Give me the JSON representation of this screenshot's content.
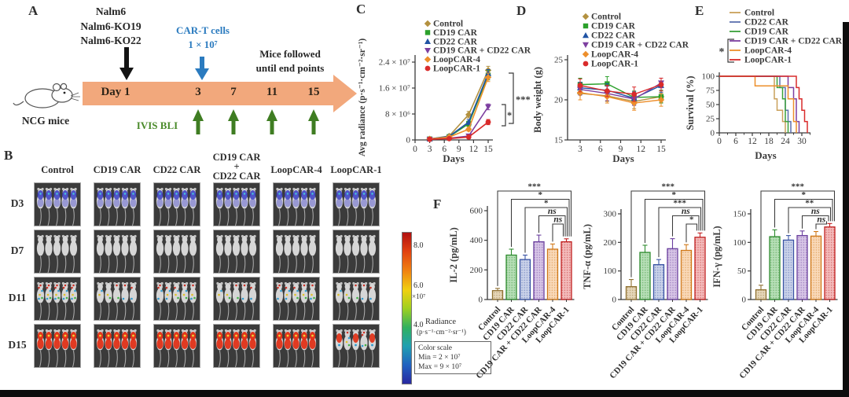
{
  "figure": {
    "panel_labels": {
      "a": "A",
      "b": "B",
      "c": "C",
      "d": "D",
      "e": "E",
      "f": "F"
    }
  },
  "panel_a": {
    "cell_lines": [
      "Nalm6",
      "Nalm6-KO19",
      "Nalm6-KO22"
    ],
    "cart_label": "CAR-T cells",
    "cart_dose": "1 × 10⁷",
    "followed_line1": "Mice followed",
    "followed_line2": "until end points",
    "timeline": [
      "Day 1",
      "3",
      "7",
      "11",
      "15"
    ],
    "mouse_label": "NCG mice",
    "ivis_label": "IVIS BLI",
    "accent_orange": "#f2a87c",
    "accent_blue": "#2b7bbf",
    "accent_green": "#3f7d22"
  },
  "panel_b": {
    "row_labels": [
      "D3",
      "D7",
      "D11",
      "D15"
    ],
    "column_headers": [
      [
        "Control"
      ],
      [
        "CD19 CAR"
      ],
      [
        "CD22 CAR"
      ],
      [
        "CD19 CAR",
        "+",
        "CD22 CAR"
      ],
      [
        "LoopCAR-4"
      ],
      [
        "LoopCAR-1"
      ]
    ],
    "signals": [
      [
        "blue",
        "blue",
        "blue",
        "blue",
        "blue",
        "blue"
      ],
      [
        "none",
        "none",
        "none",
        "none",
        "none",
        "none"
      ],
      [
        "speckle-hi",
        "speckle-lo",
        "speckle-md",
        "speckle-lo",
        "speckle-md",
        "speckle-lo"
      ],
      [
        "red",
        "red",
        "red",
        "red",
        "red",
        "red-mixed"
      ]
    ],
    "colorbar": {
      "tick_top": "8.0",
      "tick_mid": "6.0",
      "multiplier": "×10⁷",
      "tick_bot": "4.0",
      "radiance_label": "Radiance",
      "radiance_units": "(p·s⁻¹·cm⁻²·sr⁻¹)",
      "scale_title": "Color scale",
      "scale_min": "Min = 2 × 10⁷",
      "scale_max": "Max = 9 × 10⁷"
    }
  },
  "chart_data": [
    {
      "id": "c_radiance",
      "panel": "C",
      "type": "line",
      "ylabel": "Avg radiance (p·s⁻¹·cm⁻²·sr⁻¹)",
      "xlabel": "Days",
      "x_ticks": [
        0,
        3,
        6,
        9,
        12,
        15
      ],
      "y_ticks": [
        {
          "v": 0,
          "label": "0"
        },
        {
          "v": 8,
          "label": "8 × 10⁶"
        },
        {
          "v": 16,
          "label": "1.6 × 10⁷"
        },
        {
          "v": 24,
          "label": "2.4 × 10⁷"
        }
      ],
      "y_unit": "×10⁶",
      "ylim": [
        0,
        24
      ],
      "xlim": [
        0,
        15.8
      ],
      "x": [
        3,
        7,
        11,
        15
      ],
      "series": [
        {
          "name": "Control",
          "color": "#b3913f",
          "marker": "diamond",
          "values": [
            0.3,
            1.2,
            7.8,
            21.5
          ],
          "err": [
            0.15,
            0.3,
            1.0,
            1.2
          ]
        },
        {
          "name": "CD19 CAR",
          "color": "#2ba02b",
          "marker": "square",
          "values": [
            0.3,
            1.0,
            5.0,
            20.0
          ],
          "err": [
            0.15,
            0.25,
            0.8,
            1.5
          ]
        },
        {
          "name": "CD22 CAR",
          "color": "#2053a4",
          "marker": "triangle",
          "values": [
            0.3,
            1.1,
            5.5,
            20.5
          ],
          "err": [
            0.15,
            0.25,
            0.8,
            1.2
          ]
        },
        {
          "name": "CD19 CAR + CD22 CAR",
          "color": "#7d3fa0",
          "marker": "triangle-down",
          "values": [
            0.2,
            0.5,
            1.2,
            10.2
          ],
          "err": [
            0.1,
            0.2,
            0.4,
            0.9
          ]
        },
        {
          "name": "LoopCAR-4",
          "color": "#ed8f2b",
          "marker": "diamond",
          "values": [
            0.3,
            0.9,
            3.3,
            19.3
          ],
          "err": [
            0.15,
            0.2,
            0.6,
            1.3
          ]
        },
        {
          "name": "LoopCAR-1",
          "color": "#d92b2b",
          "marker": "circle",
          "values": [
            0.2,
            0.4,
            0.9,
            5.5
          ],
          "err": [
            0.1,
            0.15,
            0.3,
            0.8
          ]
        }
      ],
      "significance": {
        "outer": "***",
        "inner": "*"
      }
    },
    {
      "id": "d_bodyweight",
      "panel": "D",
      "type": "line",
      "ylabel": "Body weight (g)",
      "xlabel": "Days",
      "x_ticks": [
        3,
        6,
        9,
        12,
        15
      ],
      "y_ticks": [
        {
          "v": 15,
          "label": "15"
        },
        {
          "v": 20,
          "label": "20"
        },
        {
          "v": 25,
          "label": "25"
        }
      ],
      "ylim": [
        15,
        25
      ],
      "x": [
        3,
        7,
        11,
        15
      ],
      "series": [
        {
          "name": "Control",
          "color": "#b3913f",
          "marker": "diamond",
          "values": [
            20.8,
            20.5,
            19.8,
            20.4
          ],
          "err": [
            0.8,
            0.7,
            0.9,
            0.7
          ]
        },
        {
          "name": "CD19 CAR",
          "color": "#2ba02b",
          "marker": "square",
          "values": [
            21.9,
            22.0,
            20.3,
            20.4
          ],
          "err": [
            0.8,
            0.9,
            0.8,
            0.8
          ]
        },
        {
          "name": "CD22 CAR",
          "color": "#2053a4",
          "marker": "triangle",
          "values": [
            21.5,
            21.2,
            20.2,
            21.8
          ],
          "err": [
            0.7,
            0.8,
            0.8,
            0.9
          ]
        },
        {
          "name": "CD19 CAR + CD22 CAR",
          "color": "#7d3fa0",
          "marker": "triangle-down",
          "values": [
            21.3,
            20.8,
            20.1,
            22.1
          ],
          "err": [
            0.7,
            0.9,
            0.8,
            0.6
          ]
        },
        {
          "name": "LoopCAR-4",
          "color": "#ed8f2b",
          "marker": "diamond",
          "values": [
            20.9,
            20.4,
            19.6,
            20.0
          ],
          "err": [
            0.9,
            0.8,
            0.9,
            0.8
          ]
        },
        {
          "name": "LoopCAR-1",
          "color": "#d92b2b",
          "marker": "circle",
          "values": [
            21.8,
            21.1,
            20.7,
            21.9
          ],
          "err": [
            0.8,
            0.7,
            0.9,
            0.8
          ]
        }
      ]
    },
    {
      "id": "e_survival",
      "panel": "E",
      "type": "step",
      "ylabel": "Survival (%)",
      "xlabel": "Days",
      "x_ticks": [
        0,
        6,
        12,
        18,
        24,
        30
      ],
      "y_ticks": [
        0,
        25,
        50,
        75,
        100
      ],
      "xlim": [
        0,
        33
      ],
      "ylim": [
        0,
        100
      ],
      "significance": "*",
      "series": [
        {
          "name": "Control",
          "color": "#c9a05a",
          "points": [
            [
              0,
              100
            ],
            [
              20,
              100
            ],
            [
              20,
              60
            ],
            [
              21,
              60
            ],
            [
              21,
              40
            ],
            [
              23,
              40
            ],
            [
              23,
              20
            ],
            [
              24,
              20
            ],
            [
              24,
              0
            ]
          ]
        },
        {
          "name": "CD22 CAR",
          "color": "#5c6fae",
          "points": [
            [
              0,
              100
            ],
            [
              22,
              100
            ],
            [
              22,
              80
            ],
            [
              24,
              80
            ],
            [
              24,
              40
            ],
            [
              25,
              40
            ],
            [
              25,
              20
            ],
            [
              26,
              20
            ],
            [
              26,
              0
            ]
          ]
        },
        {
          "name": "CD19 CAR",
          "color": "#3aa13a",
          "points": [
            [
              0,
              100
            ],
            [
              21,
              100
            ],
            [
              21,
              80
            ],
            [
              23,
              80
            ],
            [
              23,
              60
            ],
            [
              24,
              60
            ],
            [
              24,
              20
            ],
            [
              25,
              20
            ],
            [
              25,
              0
            ]
          ]
        },
        {
          "name": "CD19 CAR + CD22 CAR",
          "color": "#7d3fa0",
          "points": [
            [
              0,
              100
            ],
            [
              25,
              100
            ],
            [
              25,
              80
            ],
            [
              27,
              80
            ],
            [
              27,
              60
            ],
            [
              28,
              60
            ],
            [
              28,
              20
            ],
            [
              29,
              20
            ],
            [
              29,
              0
            ]
          ]
        },
        {
          "name": "LoopCAR-4",
          "color": "#ed8f2b",
          "points": [
            [
              0,
              100
            ],
            [
              13,
              100
            ],
            [
              13,
              83
            ],
            [
              25,
              83
            ],
            [
              25,
              60
            ],
            [
              27,
              60
            ],
            [
              27,
              20
            ],
            [
              28,
              20
            ],
            [
              28,
              0
            ]
          ]
        },
        {
          "name": "LoopCAR-1",
          "color": "#d92b2b",
          "points": [
            [
              0,
              100
            ],
            [
              28,
              100
            ],
            [
              28,
              80
            ],
            [
              29,
              80
            ],
            [
              29,
              60
            ],
            [
              30,
              60
            ],
            [
              30,
              40
            ],
            [
              31,
              40
            ],
            [
              31,
              20
            ],
            [
              32,
              20
            ],
            [
              32,
              0
            ]
          ]
        }
      ]
    },
    {
      "id": "f_il2",
      "panel": "F",
      "type": "bar",
      "ylabel": "IL-2 (pg/mL)",
      "y_ticks": [
        0,
        200,
        400,
        600
      ],
      "ylim": [
        0,
        600
      ],
      "categories": [
        "Control",
        "CD19 CAR",
        "CD22 CAR",
        "CD19 CAR + CD22 CAR",
        "LoopCAR-4",
        "LoopCAR-1"
      ],
      "values": [
        60,
        300,
        270,
        390,
        340,
        390
      ],
      "errors": [
        15,
        40,
        30,
        45,
        35,
        20
      ],
      "bar_colors": [
        "#c19a52",
        "#4caf4c",
        "#7b8fc7",
        "#9b6fc0",
        "#f0a050",
        "#e05555"
      ],
      "bar_strokes": [
        "#8f7030",
        "#2e8b2e",
        "#3b55a5",
        "#6a3f9e",
        "#d07818",
        "#c02020"
      ],
      "significance": [
        "***",
        "*",
        "*",
        "ns",
        "ns"
      ]
    },
    {
      "id": "f_tnf",
      "panel": "F",
      "type": "bar",
      "ylabel": "TNF-α (pg/mL)",
      "y_ticks": [
        0,
        100,
        200,
        300
      ],
      "ylim": [
        0,
        300
      ],
      "categories": [
        "Control",
        "CD19 CAR",
        "CD22 CAR",
        "CD19 CAR + CD22 CAR",
        "LoopCAR-4",
        "LoopCAR-1"
      ],
      "values": [
        45,
        165,
        122,
        178,
        172,
        218
      ],
      "errors": [
        25,
        25,
        18,
        35,
        20,
        15
      ],
      "bar_colors": [
        "#c19a52",
        "#4caf4c",
        "#7b8fc7",
        "#9b6fc0",
        "#f0a050",
        "#e05555"
      ],
      "bar_strokes": [
        "#8f7030",
        "#2e8b2e",
        "#3b55a5",
        "#6a3f9e",
        "#d07818",
        "#c02020"
      ],
      "significance": [
        "***",
        "*",
        "***",
        "ns",
        "*"
      ]
    },
    {
      "id": "f_ifng",
      "panel": "F",
      "type": "bar",
      "ylabel": "IFN-γ (pg/mL)",
      "y_ticks": [
        0,
        50,
        100,
        150
      ],
      "ylim": [
        0,
        150
      ],
      "categories": [
        "Control",
        "CD19 CAR",
        "CD22 CAR",
        "CD19 CAR + CD22 CAR",
        "LoopCAR-4",
        "LoopCAR-1"
      ],
      "values": [
        17,
        110,
        104,
        112,
        111,
        127
      ],
      "errors": [
        8,
        12,
        8,
        8,
        8,
        6
      ],
      "bar_colors": [
        "#c19a52",
        "#4caf4c",
        "#7b8fc7",
        "#9b6fc0",
        "#f0a050",
        "#e05555"
      ],
      "bar_strokes": [
        "#8f7030",
        "#2e8b2e",
        "#3b55a5",
        "#6a3f9e",
        "#d07818",
        "#c02020"
      ],
      "significance": [
        "***",
        "*",
        "**",
        "ns",
        "ns"
      ]
    }
  ]
}
